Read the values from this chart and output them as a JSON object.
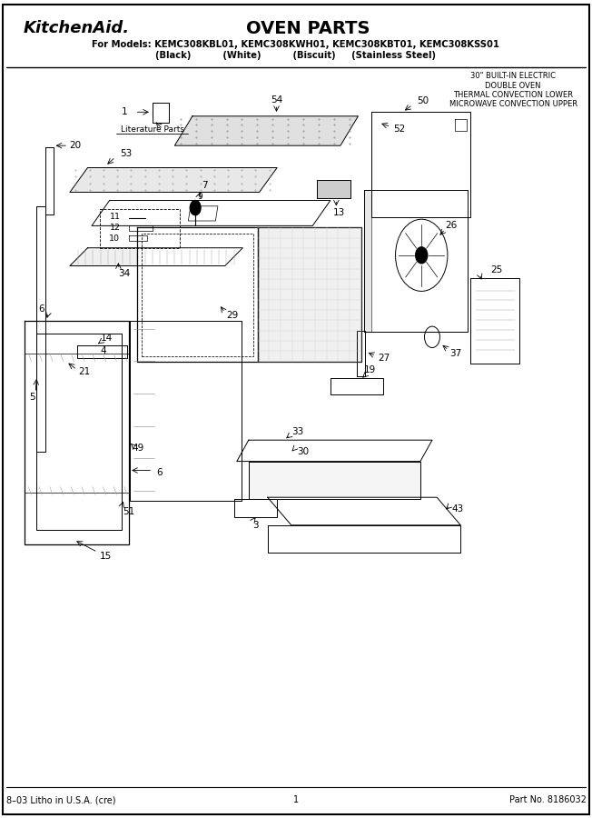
{
  "title": "OVEN PARTS",
  "brand": "KitchenAid.",
  "models_line": "For Models: KEMC308KBL01, KEMC308KWH01, KEMC308KBT01, KEMC308KSS01",
  "colors_line": "(Black)          (White)          (Biscuit)     (Stainless Steel)",
  "appliance_desc": "30\" BUILT-IN ELECTRIC\nDOUBLE OVEN\nTHERMAL CONVECTION LOWER\nMICROWAVE CONVECTION UPPER",
  "footer_left": "8–03 Litho in U.S.A. (cre)",
  "footer_center": "1",
  "footer_right": "Part No. 8186032",
  "background_color": "#ffffff",
  "text_color": "#000000"
}
